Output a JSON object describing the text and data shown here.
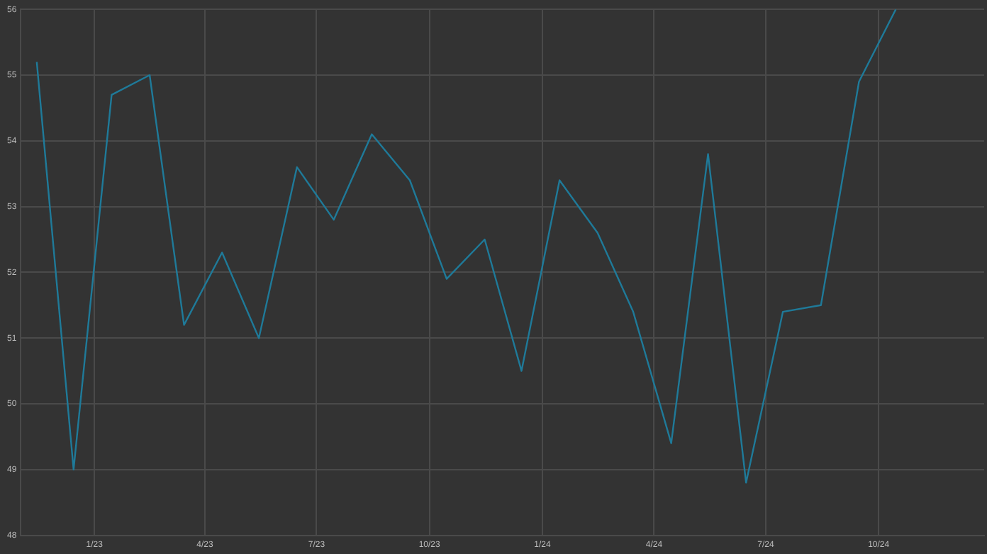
{
  "chart_data": {
    "type": "line",
    "x": [
      "2022-11-15",
      "2022-12-15",
      "2023-01-15",
      "2023-02-15",
      "2023-03-15",
      "2023-04-15",
      "2023-05-15",
      "2023-06-15",
      "2023-07-15",
      "2023-08-15",
      "2023-09-15",
      "2023-10-15",
      "2023-11-15",
      "2023-12-15",
      "2024-01-15",
      "2024-02-15",
      "2024-03-15",
      "2024-04-15",
      "2024-05-15",
      "2024-06-15",
      "2024-07-15",
      "2024-08-15",
      "2024-09-15",
      "2024-10-15"
    ],
    "series": [
      {
        "color": "#1f7a99",
        "values": [
          55.2,
          49.0,
          54.7,
          55.0,
          51.2,
          52.3,
          51.0,
          53.6,
          52.8,
          54.1,
          53.4,
          51.9,
          52.5,
          50.5,
          53.4,
          52.6,
          51.4,
          49.4,
          53.8,
          48.8,
          51.4,
          51.5,
          54.9,
          56.0
        ]
      }
    ],
    "xlim": [
      "2022-11-02",
      "2024-12-26"
    ],
    "xticks": [
      {
        "value": "2023-01-01",
        "label": "1/23"
      },
      {
        "value": "2023-04-01",
        "label": "4/23"
      },
      {
        "value": "2023-07-01",
        "label": "7/23"
      },
      {
        "value": "2023-10-01",
        "label": "10/23"
      },
      {
        "value": "2024-01-01",
        "label": "1/24"
      },
      {
        "value": "2024-04-01",
        "label": "4/24"
      },
      {
        "value": "2024-07-01",
        "label": "7/24"
      },
      {
        "value": "2024-10-01",
        "label": "10/24"
      }
    ],
    "ylim": [
      48,
      56
    ],
    "yticks": [
      48,
      49,
      50,
      51,
      52,
      53,
      54,
      55,
      56
    ],
    "grid": true,
    "legend": false,
    "marker": "none",
    "line_style": "solid"
  }
}
